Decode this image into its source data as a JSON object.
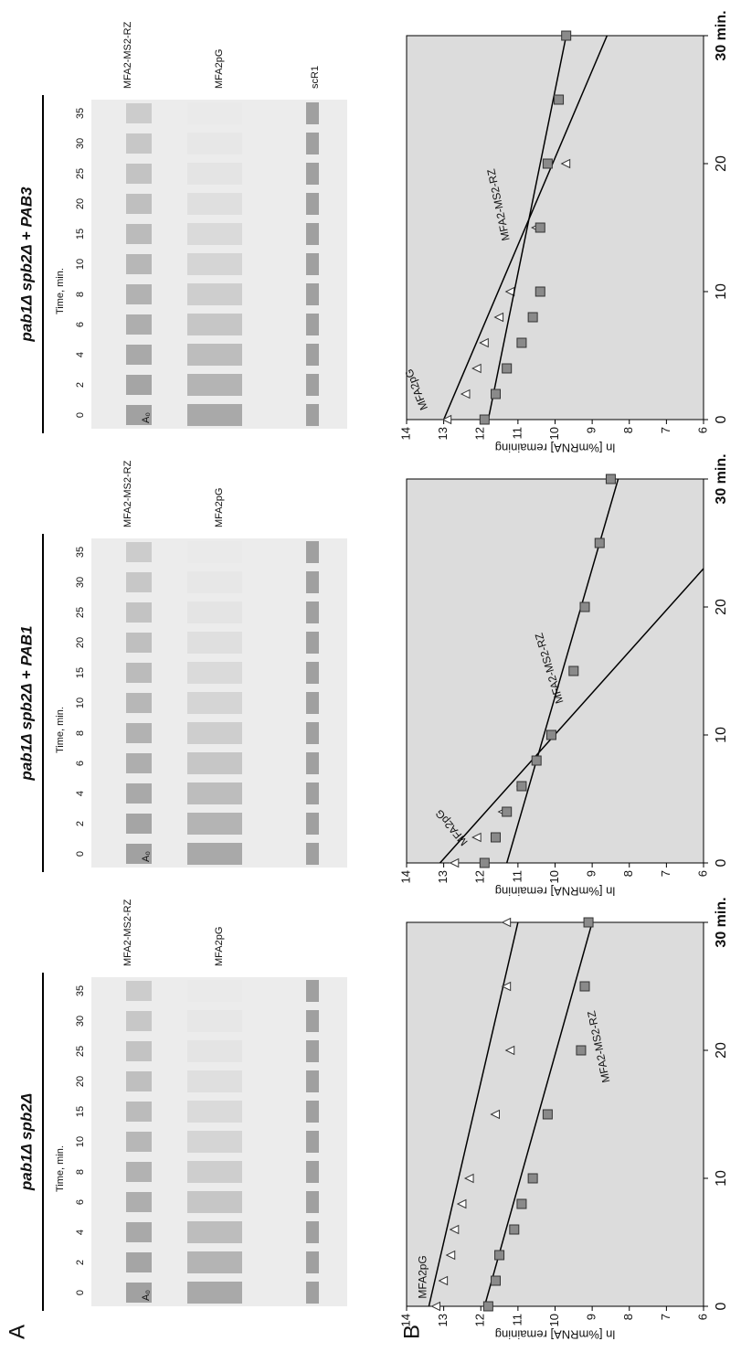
{
  "panel_labels": [
    "A",
    "B"
  ],
  "gels": [
    {
      "title": "pab1Δ spb2Δ",
      "time_label": "Time, min.",
      "times": [
        0,
        2,
        4,
        6,
        8,
        10,
        15,
        20,
        25,
        30,
        35
      ],
      "marker": "A₀",
      "bands": [
        "MFA2-MS2-RZ",
        "MFA2pG"
      ]
    },
    {
      "title": "pab1Δ spb2Δ + PAB1",
      "time_label": "Time, min.",
      "times": [
        0,
        2,
        4,
        6,
        8,
        10,
        15,
        20,
        25,
        30,
        35
      ],
      "marker": "A₀",
      "bands": [
        "MFA2-MS2-RZ",
        "MFA2pG"
      ]
    },
    {
      "title": "pab1Δ spb2Δ + PAB3",
      "time_label": "Time, min.",
      "times": [
        0,
        2,
        4,
        6,
        8,
        10,
        15,
        20,
        25,
        30,
        35
      ],
      "marker": "A₀",
      "bands": [
        "MFA2-MS2-RZ",
        "MFA2pG",
        "scR1"
      ]
    }
  ],
  "chart_data": [
    {
      "type": "scatter",
      "ylabel": "ln [%mRNA] remaining",
      "xlim": [
        0,
        30
      ],
      "ylim": [
        6,
        14
      ],
      "xticks": [
        0,
        10,
        20,
        {
          "value": 30,
          "label": "30 min."
        }
      ],
      "yticks": [
        6,
        7,
        8,
        9,
        10,
        11,
        12,
        13,
        14
      ],
      "series": [
        {
          "name": "MFA2pG",
          "marker": "triangle",
          "color": "#333333",
          "x": [
            0,
            2,
            4,
            6,
            8,
            10,
            15,
            20,
            25,
            30
          ],
          "values": [
            13.2,
            13.0,
            12.8,
            12.7,
            12.5,
            12.3,
            11.6,
            11.2,
            11.3,
            11.3
          ],
          "fit": {
            "x": [
              0,
              30
            ],
            "values": [
              13.4,
              11.0
            ]
          }
        },
        {
          "name": "MFA2-MS2-RZ",
          "marker": "square",
          "color": "#8a8a8a",
          "x": [
            0,
            2,
            4,
            6,
            8,
            10,
            15,
            20,
            25,
            30
          ],
          "values": [
            11.8,
            11.6,
            11.5,
            11.1,
            10.9,
            10.6,
            10.2,
            9.3,
            9.2,
            9.1
          ],
          "fit": {
            "x": [
              0,
              30
            ],
            "values": [
              11.9,
              9.0
            ]
          }
        }
      ]
    },
    {
      "type": "scatter",
      "ylabel": "ln [%mRNA] remaining",
      "xlim": [
        0,
        30
      ],
      "ylim": [
        6,
        14
      ],
      "xticks": [
        0,
        10,
        20,
        {
          "value": 30,
          "label": "30 min."
        }
      ],
      "yticks": [
        6,
        7,
        8,
        9,
        10,
        11,
        12,
        13,
        14
      ],
      "series": [
        {
          "name": "MFA2pG",
          "marker": "triangle",
          "color": "#333333",
          "x": [
            0,
            2,
            4,
            6
          ],
          "values": [
            12.7,
            12.1,
            11.4,
            10.9
          ],
          "fit": {
            "x": [
              0,
              23
            ],
            "values": [
              13.1,
              6
            ]
          }
        },
        {
          "name": "MFA2-MS2-RZ",
          "marker": "square",
          "color": "#8a8a8a",
          "x": [
            0,
            2,
            4,
            6,
            8,
            10,
            15,
            20,
            25,
            30
          ],
          "values": [
            11.9,
            11.6,
            11.3,
            10.9,
            10.5,
            10.1,
            9.5,
            9.2,
            8.8,
            8.5
          ],
          "fit": {
            "x": [
              0,
              30
            ],
            "values": [
              11.3,
              8.3
            ]
          }
        }
      ]
    },
    {
      "type": "scatter",
      "ylabel": "ln [%mRNA] remaining",
      "xlim": [
        0,
        30
      ],
      "ylim": [
        6,
        14
      ],
      "xticks": [
        0,
        10,
        20,
        {
          "value": 30,
          "label": "30 min."
        }
      ],
      "yticks": [
        6,
        7,
        8,
        9,
        10,
        11,
        12,
        13,
        14
      ],
      "series": [
        {
          "name": "MFA2pG",
          "marker": "triangle",
          "color": "#333333",
          "x": [
            0,
            2,
            4,
            6,
            8,
            10,
            15,
            20
          ],
          "values": [
            12.9,
            12.4,
            12.1,
            11.9,
            11.5,
            11.2,
            10.5,
            9.7
          ],
          "fit": {
            "x": [
              0,
              30
            ],
            "values": [
              13.0,
              8.6
            ]
          }
        },
        {
          "name": "MFA2-MS2-RZ",
          "marker": "square",
          "color": "#8a8a8a",
          "x": [
            0,
            2,
            4,
            6,
            8,
            10,
            15,
            20,
            25,
            30
          ],
          "values": [
            11.9,
            11.6,
            11.3,
            10.9,
            10.6,
            10.4,
            10.4,
            10.2,
            9.9,
            9.7
          ],
          "fit": {
            "x": [
              0,
              30
            ],
            "values": [
              11.8,
              9.7
            ]
          }
        }
      ]
    }
  ]
}
